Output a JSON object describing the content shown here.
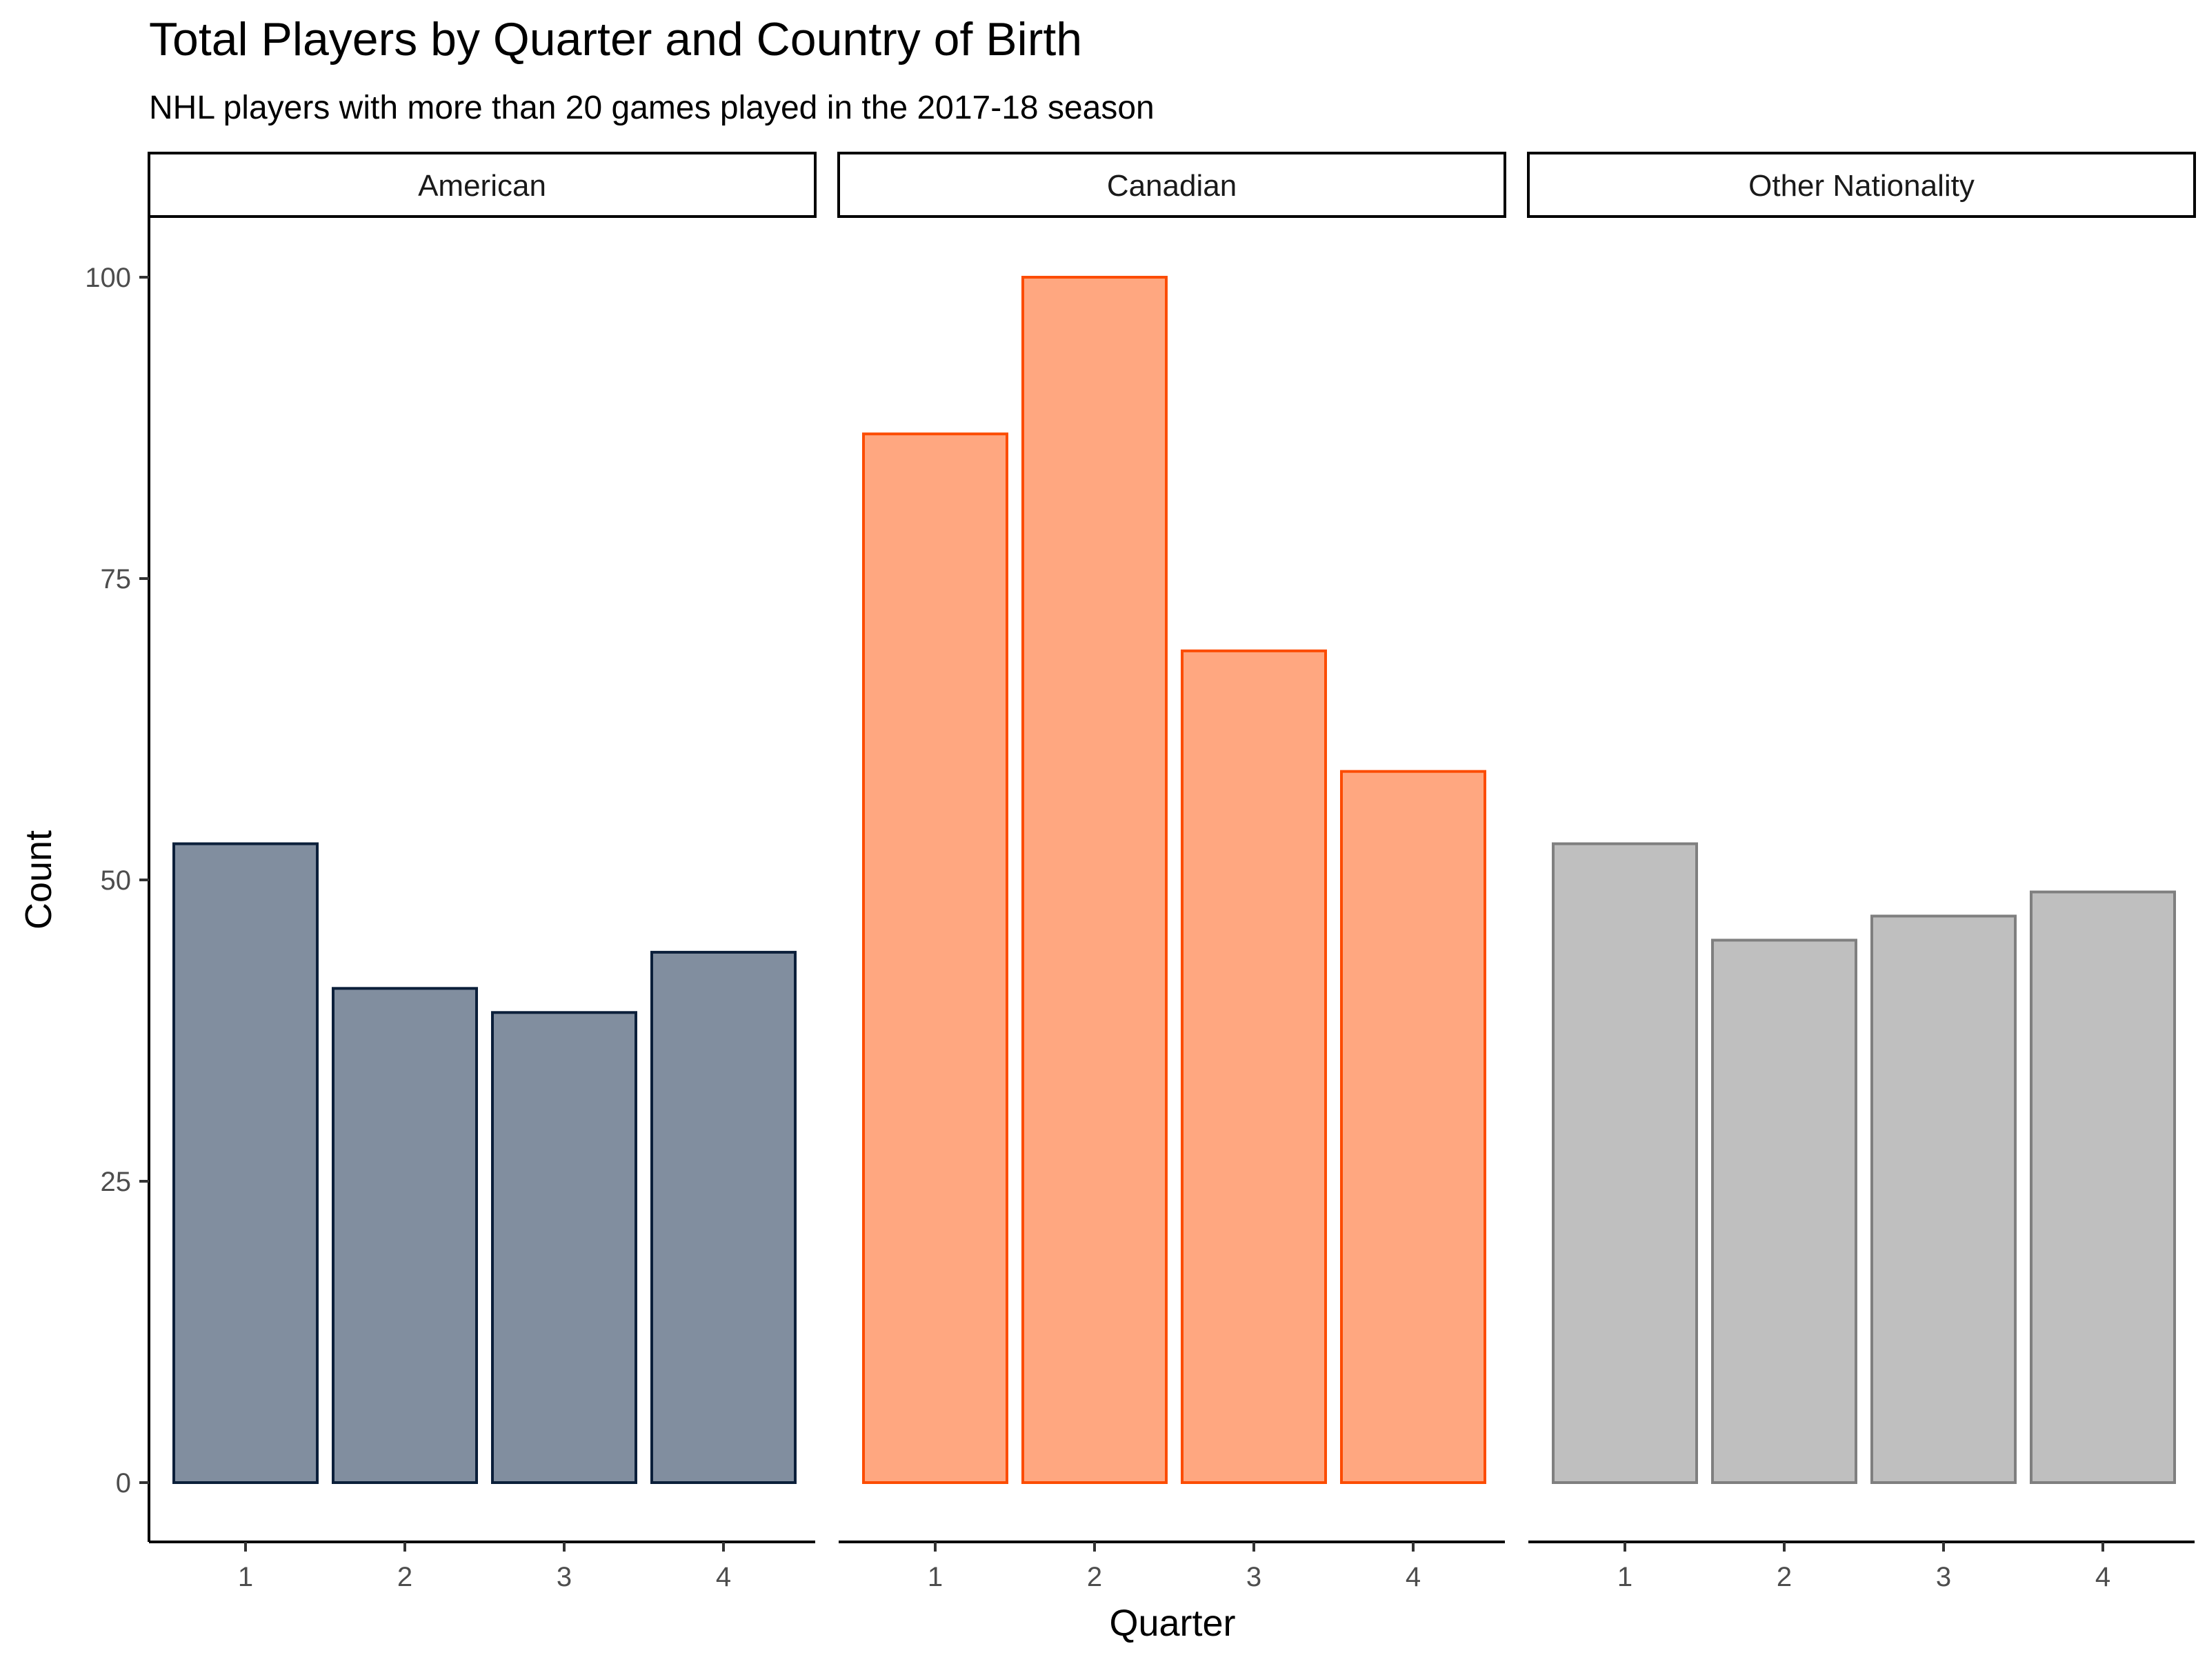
{
  "chart_data": {
    "type": "bar",
    "title": "Total Players by Quarter and Country of Birth",
    "subtitle": "NHL players with more than 20 games played in the 2017-18 season",
    "xlabel": "Quarter",
    "ylabel": "Count",
    "ylim": [
      0,
      105
    ],
    "yticks": [
      0,
      25,
      50,
      75,
      100
    ],
    "categories": [
      "1",
      "2",
      "3",
      "4"
    ],
    "grid": false,
    "facets": [
      {
        "name": "American",
        "values": [
          53,
          41,
          39,
          44
        ],
        "fill": "#818E9F",
        "stroke": "#0B1F3A"
      },
      {
        "name": "Canadian",
        "values": [
          87,
          100,
          69,
          59
        ],
        "fill": "#FFA780",
        "stroke": "#FC4C02"
      },
      {
        "name": "Other Nationality",
        "values": [
          53,
          45,
          47,
          49
        ],
        "fill": "#BFBFBF",
        "stroke": "#7F7F7F"
      }
    ]
  }
}
